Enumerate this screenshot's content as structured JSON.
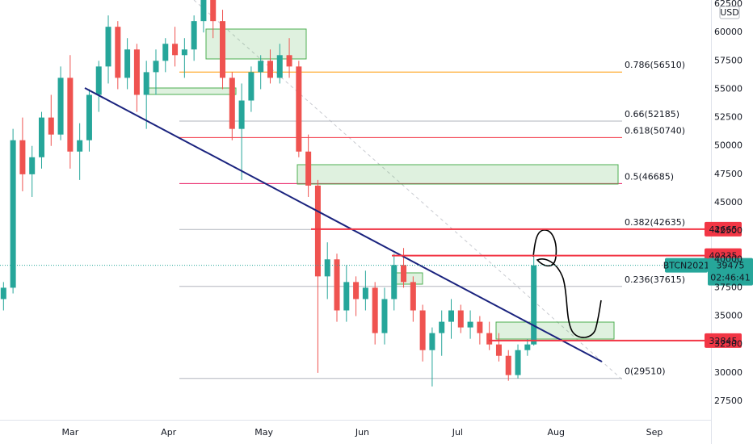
{
  "chart_data": {
    "type": "candlestick",
    "currency": "USD",
    "x": [
      -21,
      -18,
      -15,
      -12,
      -9,
      -6,
      -3,
      0,
      3,
      6,
      9,
      12,
      15,
      18,
      21,
      24,
      27,
      30,
      33,
      36,
      39,
      42,
      45,
      48,
      51,
      54,
      57,
      60,
      63,
      66,
      69,
      72,
      75,
      78,
      81,
      84,
      87,
      90,
      93,
      96,
      99,
      102,
      105,
      108,
      111,
      114,
      117,
      120,
      123,
      126,
      129,
      132,
      135,
      138,
      141,
      144,
      146
    ],
    "open": [
      36500,
      37500,
      50500,
      47500,
      49000,
      52500,
      51000,
      56000,
      49500,
      50500,
      54500,
      57000,
      60500,
      56000,
      58500,
      54500,
      56500,
      57500,
      59000,
      58000,
      58500,
      61000,
      63000,
      61000,
      56000,
      51500,
      54000,
      56500,
      57500,
      56000,
      58000,
      57000,
      49500,
      46500,
      38500,
      40000,
      35500,
      38000,
      36500,
      37500,
      33500,
      36500,
      39500,
      38000,
      35500,
      32000,
      33500,
      34500,
      35500,
      34000,
      34500,
      33500,
      32500,
      31500,
      29800,
      32000,
      32500
    ],
    "high": [
      38000,
      51500,
      52500,
      50000,
      53000,
      54500,
      57000,
      58000,
      52000,
      55000,
      57500,
      61500,
      61000,
      59500,
      59000,
      57500,
      58500,
      59500,
      60500,
      59500,
      61500,
      64500,
      63500,
      62000,
      56500,
      55500,
      57000,
      58000,
      58500,
      59000,
      59500,
      57500,
      51000,
      47000,
      41500,
      40500,
      39500,
      38500,
      39000,
      38000,
      37500,
      40500,
      41000,
      38500,
      36000,
      34000,
      35500,
      36500,
      36000,
      35500,
      35000,
      34500,
      33500,
      32000,
      32500,
      33000,
      40300
    ],
    "low": [
      35500,
      37000,
      46000,
      45500,
      48000,
      50000,
      50500,
      48000,
      47000,
      49500,
      53000,
      55500,
      55000,
      55000,
      53000,
      51500,
      54500,
      56500,
      57000,
      56000,
      57500,
      60000,
      59500,
      55000,
      50500,
      47000,
      53000,
      55000,
      55500,
      55500,
      56000,
      49000,
      45500,
      30000,
      36500,
      34500,
      34500,
      35000,
      35500,
      32500,
      32500,
      35500,
      37500,
      34500,
      31000,
      28800,
      31500,
      33000,
      33500,
      33000,
      32500,
      32000,
      31000,
      29300,
      29500,
      31500,
      32400
    ],
    "close": [
      37500,
      50500,
      47500,
      49000,
      52500,
      51000,
      56000,
      49500,
      50500,
      54500,
      57000,
      60500,
      56000,
      58500,
      54500,
      56500,
      57500,
      59000,
      58000,
      58500,
      61000,
      63000,
      61000,
      56000,
      51500,
      54000,
      56500,
      57500,
      56000,
      58000,
      57000,
      49500,
      46500,
      38500,
      40000,
      35500,
      38000,
      36500,
      37500,
      33500,
      36500,
      39500,
      38000,
      35500,
      32000,
      33500,
      34500,
      35500,
      34000,
      34500,
      33500,
      32500,
      31500,
      29800,
      32000,
      32500,
      39475
    ],
    "up_color": "#26a69a",
    "down_color": "#ef5350",
    "xlim": [
      -22.1,
      201.8
    ],
    "xticks": [
      {
        "value": 0,
        "label": "Mar"
      },
      {
        "value": 31,
        "label": "Apr"
      },
      {
        "value": 61,
        "label": "May"
      },
      {
        "value": 92,
        "label": "Jun"
      },
      {
        "value": 122,
        "label": "Jul"
      },
      {
        "value": 153,
        "label": "Aug"
      },
      {
        "value": 184,
        "label": "Sep"
      }
    ],
    "ylim": [
      25860,
      62860
    ],
    "yticks": [
      62500,
      60000,
      57500,
      55000,
      52500,
      50000,
      47500,
      45000,
      42500,
      40000,
      37500,
      35000,
      32500,
      30000,
      27500
    ],
    "fib_levels": [
      {
        "label": "0.786(56510)",
        "value": 56510,
        "color": "#ff9800"
      },
      {
        "label": "0.66(52185)",
        "value": 52185,
        "color": "#b2b5be"
      },
      {
        "label": "0.618(50740)",
        "value": 50740,
        "color": "#f23645"
      },
      {
        "label": "0.5(46685)",
        "value": 46685,
        "color": "#e91e63"
      },
      {
        "label": "0.382(42635)",
        "value": 42635,
        "color": "#b2b5be"
      },
      {
        "label": "0.236(37615)",
        "value": 37615,
        "color": "#b2b5be"
      },
      {
        "label": "0(29510)",
        "value": 29510,
        "color": "#b2b5be"
      }
    ],
    "price_lines": [
      42665,
      40335,
      32845
    ],
    "price_line_color": "#f23645",
    "last_price": {
      "symbol": "BTCN2021",
      "value": 39475,
      "countdown": "02:46:41",
      "color": "#26a69a"
    }
  }
}
